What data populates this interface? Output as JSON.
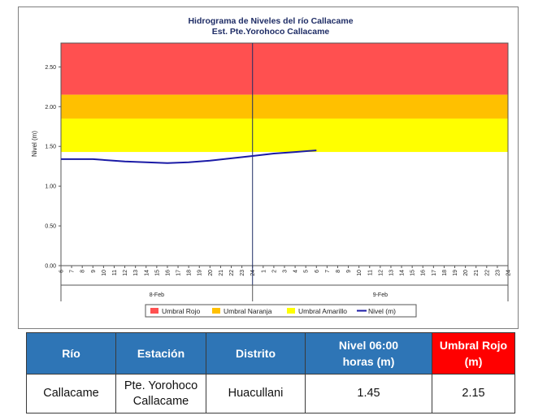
{
  "chart_data": {
    "type": "line",
    "title": "Hidrograma de Niveles del río Callacame",
    "subtitle": "Est. Pte.Yorohoco Callacame",
    "ylabel": "Nivel (m)",
    "ylim": [
      0,
      2.8
    ],
    "y_ticks": [
      "0.00",
      "0.50",
      "1.00",
      "1.50",
      "2.00",
      "2.50"
    ],
    "y_tick_values": [
      0,
      0.5,
      1.0,
      1.5,
      2.0,
      2.5
    ],
    "x_hour_ticks": [
      "6",
      "7",
      "8",
      "9",
      "10",
      "11",
      "12",
      "13",
      "14",
      "15",
      "16",
      "17",
      "18",
      "19",
      "20",
      "21",
      "22",
      "23",
      "24",
      "1",
      "2",
      "3",
      "4",
      "5",
      "6",
      "7",
      "8",
      "9",
      "10",
      "11",
      "12",
      "13",
      "14",
      "15",
      "16",
      "17",
      "18",
      "19",
      "20",
      "21",
      "22",
      "23",
      "24"
    ],
    "x_day_labels": [
      "8-Feb",
      "9-Feb"
    ],
    "series": [
      {
        "name": "Nivel (m)",
        "color": "#1a1aa6",
        "x_hours": [
          6,
          9,
          12,
          14,
          16,
          18,
          20,
          22,
          24,
          26,
          28,
          30
        ],
        "values": [
          1.34,
          1.34,
          1.31,
          1.3,
          1.29,
          1.3,
          1.32,
          1.35,
          1.38,
          1.41,
          1.43,
          1.45
        ]
      }
    ],
    "thresholds": [
      {
        "name": "Umbral Rojo",
        "color": "#ff5050",
        "from": 2.15,
        "to": 2.8
      },
      {
        "name": "Umbral Naranja",
        "color": "#ffc000",
        "from": 1.85,
        "to": 2.15
      },
      {
        "name": "Umbral Amarillo",
        "color": "#ffff00",
        "from": 1.43,
        "to": 1.85
      }
    ],
    "legend": [
      "Umbral Rojo",
      "Umbral Naranja",
      "Umbral Amarillo",
      "Nivel (m)"
    ],
    "legend_position": "bottom"
  },
  "table": {
    "headers": {
      "rio": "Río",
      "estacion": "Estación",
      "distrito": "Distrito",
      "nivel_line1": "Nivel 06:00",
      "nivel_line2": "horas (m)",
      "umbral_line1": "Umbral Rojo",
      "umbral_line2": "(m)"
    },
    "row": {
      "rio": "Callacame",
      "estacion_line1": "Pte. Yorohoco",
      "estacion_line2": "Callacame",
      "distrito": "Huacullani",
      "nivel": "1.45",
      "umbral": "2.15"
    }
  },
  "colors": {
    "header_blue": "#2e75b6",
    "header_red": "#ff0000"
  }
}
